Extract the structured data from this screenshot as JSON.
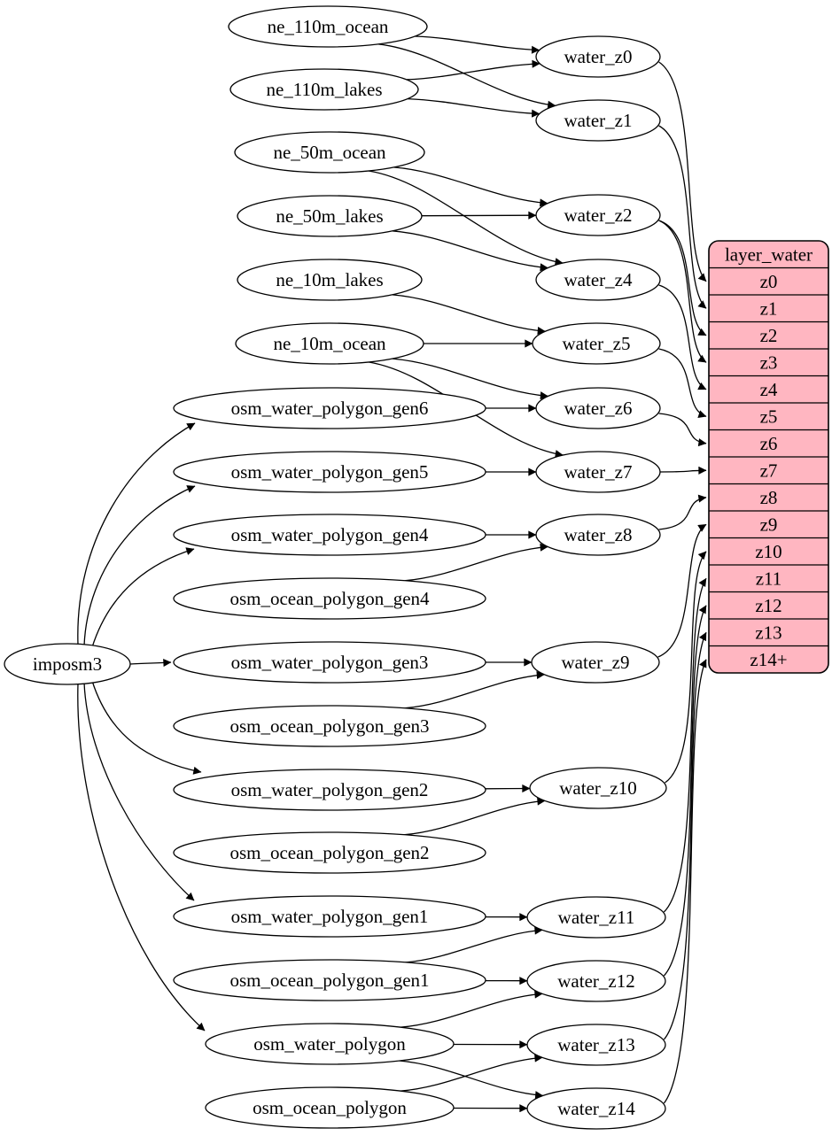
{
  "diagram": {
    "nodes": [
      {
        "id": "imposm3",
        "label": "imposm3"
      },
      {
        "id": "ne_110m_ocean",
        "label": "ne_110m_ocean"
      },
      {
        "id": "ne_110m_lakes",
        "label": "ne_110m_lakes"
      },
      {
        "id": "ne_50m_ocean",
        "label": "ne_50m_ocean"
      },
      {
        "id": "ne_50m_lakes",
        "label": "ne_50m_lakes"
      },
      {
        "id": "ne_10m_lakes",
        "label": "ne_10m_lakes"
      },
      {
        "id": "ne_10m_ocean",
        "label": "ne_10m_ocean"
      },
      {
        "id": "osm_water_polygon_gen6",
        "label": "osm_water_polygon_gen6"
      },
      {
        "id": "osm_water_polygon_gen5",
        "label": "osm_water_polygon_gen5"
      },
      {
        "id": "osm_water_polygon_gen4",
        "label": "osm_water_polygon_gen4"
      },
      {
        "id": "osm_ocean_polygon_gen4",
        "label": "osm_ocean_polygon_gen4"
      },
      {
        "id": "osm_water_polygon_gen3",
        "label": "osm_water_polygon_gen3"
      },
      {
        "id": "osm_ocean_polygon_gen3",
        "label": "osm_ocean_polygon_gen3"
      },
      {
        "id": "osm_water_polygon_gen2",
        "label": "osm_water_polygon_gen2"
      },
      {
        "id": "osm_ocean_polygon_gen2",
        "label": "osm_ocean_polygon_gen2"
      },
      {
        "id": "osm_water_polygon_gen1",
        "label": "osm_water_polygon_gen1"
      },
      {
        "id": "osm_ocean_polygon_gen1",
        "label": "osm_ocean_polygon_gen1"
      },
      {
        "id": "osm_water_polygon",
        "label": "osm_water_polygon"
      },
      {
        "id": "osm_ocean_polygon",
        "label": "osm_ocean_polygon"
      },
      {
        "id": "water_z0",
        "label": "water_z0"
      },
      {
        "id": "water_z1",
        "label": "water_z1"
      },
      {
        "id": "water_z2",
        "label": "water_z2"
      },
      {
        "id": "water_z4",
        "label": "water_z4"
      },
      {
        "id": "water_z5",
        "label": "water_z5"
      },
      {
        "id": "water_z6",
        "label": "water_z6"
      },
      {
        "id": "water_z7",
        "label": "water_z7"
      },
      {
        "id": "water_z8",
        "label": "water_z8"
      },
      {
        "id": "water_z9",
        "label": "water_z9"
      },
      {
        "id": "water_z10",
        "label": "water_z10"
      },
      {
        "id": "water_z11",
        "label": "water_z11"
      },
      {
        "id": "water_z12",
        "label": "water_z12"
      },
      {
        "id": "water_z13",
        "label": "water_z13"
      },
      {
        "id": "water_z14",
        "label": "water_z14"
      }
    ],
    "edges": [
      [
        "imposm3",
        "osm_water_polygon_gen6"
      ],
      [
        "imposm3",
        "osm_water_polygon_gen5"
      ],
      [
        "imposm3",
        "osm_water_polygon_gen4"
      ],
      [
        "imposm3",
        "osm_water_polygon_gen3"
      ],
      [
        "imposm3",
        "osm_water_polygon_gen2"
      ],
      [
        "imposm3",
        "osm_water_polygon_gen1"
      ],
      [
        "imposm3",
        "osm_water_polygon"
      ],
      [
        "ne_110m_ocean",
        "water_z0"
      ],
      [
        "ne_110m_ocean",
        "water_z1"
      ],
      [
        "ne_110m_lakes",
        "water_z0"
      ],
      [
        "ne_110m_lakes",
        "water_z1"
      ],
      [
        "ne_50m_ocean",
        "water_z2"
      ],
      [
        "ne_50m_ocean",
        "water_z4"
      ],
      [
        "ne_50m_lakes",
        "water_z2"
      ],
      [
        "ne_50m_lakes",
        "water_z4"
      ],
      [
        "ne_10m_lakes",
        "water_z5"
      ],
      [
        "ne_10m_ocean",
        "water_z5"
      ],
      [
        "ne_10m_ocean",
        "water_z6"
      ],
      [
        "ne_10m_ocean",
        "water_z7"
      ],
      [
        "osm_water_polygon_gen6",
        "water_z6"
      ],
      [
        "osm_water_polygon_gen5",
        "water_z7"
      ],
      [
        "osm_water_polygon_gen4",
        "water_z8"
      ],
      [
        "osm_ocean_polygon_gen4",
        "water_z8"
      ],
      [
        "osm_water_polygon_gen3",
        "water_z9"
      ],
      [
        "osm_ocean_polygon_gen3",
        "water_z9"
      ],
      [
        "osm_water_polygon_gen2",
        "water_z10"
      ],
      [
        "osm_ocean_polygon_gen2",
        "water_z10"
      ],
      [
        "osm_water_polygon_gen1",
        "water_z11"
      ],
      [
        "osm_ocean_polygon_gen1",
        "water_z11"
      ],
      [
        "osm_ocean_polygon_gen1",
        "water_z12"
      ],
      [
        "osm_water_polygon",
        "water_z12"
      ],
      [
        "osm_water_polygon",
        "water_z13"
      ],
      [
        "osm_water_polygon",
        "water_z14"
      ],
      [
        "osm_ocean_polygon",
        "water_z13"
      ],
      [
        "osm_ocean_polygon",
        "water_z14"
      ]
    ],
    "table": {
      "title": "layer_water",
      "rows": [
        "z0",
        "z1",
        "z2",
        "z3",
        "z4",
        "z5",
        "z6",
        "z7",
        "z8",
        "z9",
        "z10",
        "z11",
        "z12",
        "z13",
        "z14+"
      ]
    },
    "table_edges": [
      [
        "water_z0",
        "z0"
      ],
      [
        "water_z1",
        "z1"
      ],
      [
        "water_z2",
        "z2"
      ],
      [
        "water_z2",
        "z3"
      ],
      [
        "water_z4",
        "z4"
      ],
      [
        "water_z5",
        "z5"
      ],
      [
        "water_z6",
        "z6"
      ],
      [
        "water_z7",
        "z7"
      ],
      [
        "water_z8",
        "z8"
      ],
      [
        "water_z9",
        "z9"
      ],
      [
        "water_z10",
        "z10"
      ],
      [
        "water_z11",
        "z11"
      ],
      [
        "water_z12",
        "z12"
      ],
      [
        "water_z13",
        "z13"
      ],
      [
        "water_z14",
        "z14+"
      ]
    ],
    "colors": {
      "table_fill": "#ffb6c1",
      "node_fill": "#ffffff",
      "stroke": "#000000",
      "background": "#ffffff"
    }
  }
}
